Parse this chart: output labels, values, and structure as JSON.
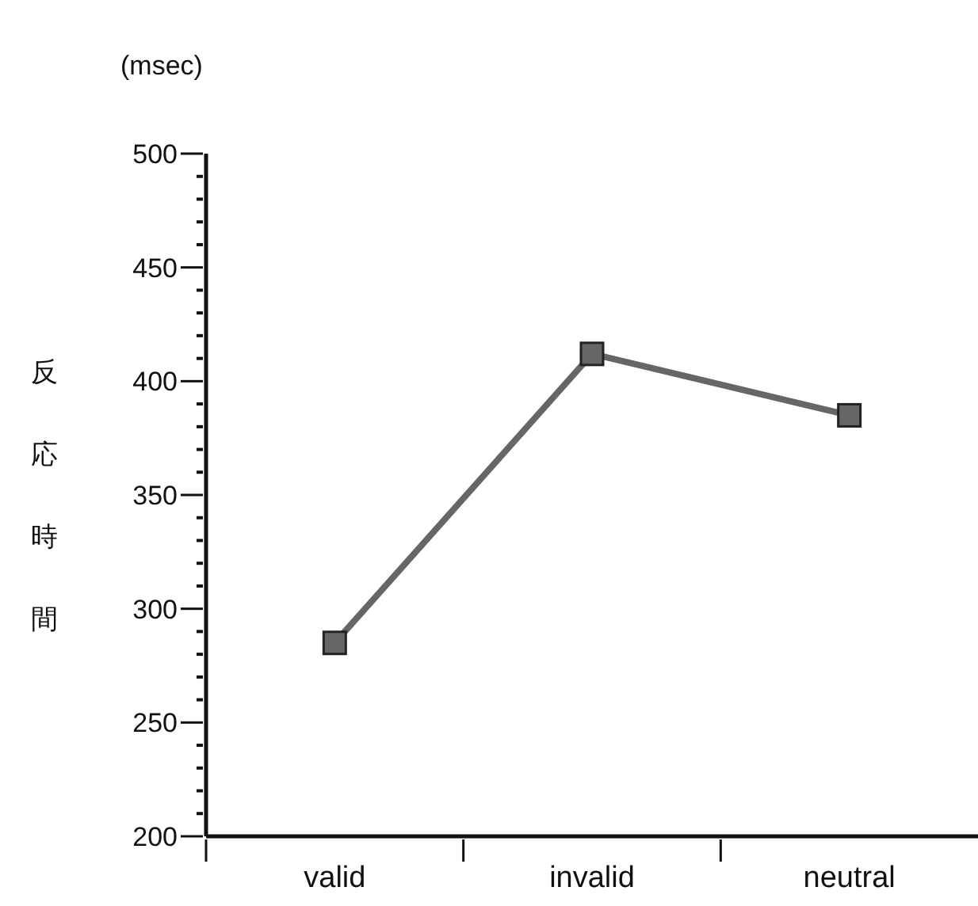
{
  "chart_data": {
    "type": "line",
    "ylabel": "反応時間",
    "annotations": [
      "(msec)"
    ],
    "categories": [
      "valid",
      "invalid",
      "neutral"
    ],
    "series": [
      {
        "color": "#666666",
        "values": [
          285,
          412,
          385
        ]
      }
    ],
    "ylim": [
      200,
      500
    ],
    "yticks": [
      200,
      {
        "value": 210,
        "label": null
      },
      {
        "value": 220,
        "label": null
      },
      {
        "value": 230,
        "label": null
      },
      {
        "value": 240,
        "label": null
      },
      250,
      {
        "value": 260,
        "label": null
      },
      {
        "value": 270,
        "label": null
      },
      {
        "value": 280,
        "label": null
      },
      {
        "value": 290,
        "label": null
      },
      300,
      {
        "value": 310,
        "label": null
      },
      {
        "value": 320,
        "label": null
      },
      {
        "value": 330,
        "label": null
      },
      {
        "value": 340,
        "label": null
      },
      350,
      {
        "value": 360,
        "label": null
      },
      {
        "value": 370,
        "label": null
      },
      {
        "value": 380,
        "label": null
      },
      {
        "value": 390,
        "label": null
      },
      400,
      {
        "value": 410,
        "label": null
      },
      {
        "value": 420,
        "label": null
      },
      {
        "value": 430,
        "label": null
      },
      {
        "value": 440,
        "label": null
      },
      450,
      {
        "value": 460,
        "label": null
      },
      {
        "value": 470,
        "label": null
      },
      {
        "value": 480,
        "label": null
      },
      {
        "value": 490,
        "label": null
      },
      500
    ],
    "marker": "square",
    "grid": false,
    "legend": false
  }
}
